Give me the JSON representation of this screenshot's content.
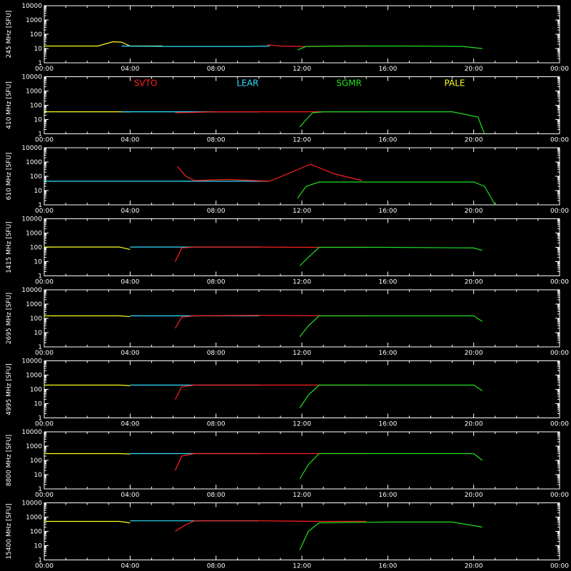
{
  "chart_data": {
    "type": "line",
    "ylabel_unit": "[SFU]",
    "y_scale": "log",
    "ylim": [
      1,
      10000
    ],
    "y_ticks": [
      "10000",
      "1000",
      "100",
      "10",
      "1"
    ],
    "x_ticks": [
      "00:00",
      "04:00",
      "08:00",
      "12:00",
      "16:00",
      "20:00",
      "00:00"
    ],
    "xlim_hours": [
      0,
      24
    ],
    "legend": [
      {
        "name": "SVTO",
        "color": "#ff2020"
      },
      {
        "name": "LEAR",
        "color": "#30e0ff"
      },
      {
        "name": "SGMR",
        "color": "#20e020"
      },
      {
        "name": "PALE",
        "color": "#ffff20"
      }
    ],
    "panels": [
      {
        "freq": "245 MHz",
        "series": {
          "PALE": [
            [
              0,
              15
            ],
            [
              2.5,
              15
            ],
            [
              3.2,
              30
            ],
            [
              3.6,
              28
            ],
            [
              4,
              15
            ],
            [
              5.5,
              15
            ]
          ],
          "LEAR": [
            [
              3.6,
              15
            ],
            [
              6,
              14
            ],
            [
              8,
              14
            ],
            [
              9.5,
              14
            ],
            [
              10.5,
              15
            ]
          ],
          "SVTO": [
            [
              10.4,
              18
            ],
            [
              11,
              15
            ],
            [
              12,
              14
            ],
            [
              13.5,
              15
            ],
            [
              15,
              15
            ]
          ],
          "SGMR": [
            [
              11.8,
              8
            ],
            [
              12.2,
              14
            ],
            [
              14,
              15
            ],
            [
              16,
              15
            ],
            [
              17,
              15
            ],
            [
              19.5,
              14
            ],
            [
              20.4,
              10
            ]
          ]
        }
      },
      {
        "freq": "410 MHz",
        "series": {
          "PALE": [
            [
              0,
              35
            ],
            [
              1,
              35
            ],
            [
              3.5,
              35
            ],
            [
              4,
              35
            ]
          ],
          "LEAR": [
            [
              3.6,
              35
            ],
            [
              6,
              35
            ],
            [
              8,
              35
            ],
            [
              10,
              35
            ]
          ],
          "SVTO": [
            [
              6.1,
              30
            ],
            [
              8,
              35
            ],
            [
              10,
              35
            ],
            [
              12,
              35
            ],
            [
              15,
              35
            ]
          ],
          "SGMR": [
            [
              11.9,
              3
            ],
            [
              12.2,
              10
            ],
            [
              12.5,
              30
            ],
            [
              13,
              35
            ],
            [
              16,
              35
            ],
            [
              19,
              35
            ],
            [
              20.2,
              15
            ],
            [
              20.5,
              1
            ]
          ]
        }
      },
      {
        "freq": "610 MHz",
        "series": {
          "LEAR": [
            [
              0,
              45
            ],
            [
              3.5,
              45
            ],
            [
              6,
              45
            ],
            [
              9,
              45
            ],
            [
              10.5,
              45
            ]
          ],
          "SVTO": [
            [
              6.2,
              500
            ],
            [
              6.6,
              100
            ],
            [
              7,
              50
            ],
            [
              8.5,
              60
            ],
            [
              10.5,
              45
            ],
            [
              12.4,
              700
            ],
            [
              13.5,
              150
            ],
            [
              14.8,
              50
            ]
          ],
          "SGMR": [
            [
              11.8,
              3
            ],
            [
              12.2,
              20
            ],
            [
              12.8,
              40
            ],
            [
              16,
              40
            ],
            [
              20,
              40
            ],
            [
              20.5,
              20
            ],
            [
              21,
              1
            ]
          ]
        }
      },
      {
        "freq": "1415 MHz",
        "series": {
          "PALE": [
            [
              0,
              105
            ],
            [
              3.5,
              105
            ],
            [
              4,
              70
            ]
          ],
          "LEAR": [
            [
              4,
              105
            ],
            [
              6,
              105
            ],
            [
              9,
              105
            ],
            [
              10,
              105
            ]
          ],
          "SVTO": [
            [
              6.1,
              10
            ],
            [
              6.4,
              90
            ],
            [
              7,
              105
            ],
            [
              10,
              105
            ],
            [
              12,
              100
            ],
            [
              15,
              100
            ]
          ],
          "SGMR": [
            [
              11.9,
              5
            ],
            [
              12.3,
              20
            ],
            [
              12.8,
              100
            ],
            [
              16,
              100
            ],
            [
              20,
              90
            ],
            [
              20.4,
              60
            ]
          ]
        }
      },
      {
        "freq": "2695 MHz",
        "series": {
          "PALE": [
            [
              0,
              150
            ],
            [
              3.5,
              150
            ],
            [
              4,
              130
            ]
          ],
          "LEAR": [
            [
              4,
              150
            ],
            [
              6,
              150
            ],
            [
              9,
              150
            ],
            [
              10,
              150
            ]
          ],
          "SVTO": [
            [
              6.1,
              20
            ],
            [
              6.4,
              120
            ],
            [
              7,
              150
            ],
            [
              10,
              160
            ],
            [
              13,
              150
            ],
            [
              15,
              150
            ]
          ],
          "SGMR": [
            [
              11.9,
              5
            ],
            [
              12.3,
              30
            ],
            [
              12.8,
              150
            ],
            [
              16,
              150
            ],
            [
              20,
              150
            ],
            [
              20.4,
              60
            ]
          ]
        }
      },
      {
        "freq": "4995 MHz",
        "series": {
          "PALE": [
            [
              0,
              200
            ],
            [
              3.5,
              200
            ],
            [
              4,
              180
            ]
          ],
          "LEAR": [
            [
              4,
              200
            ],
            [
              6,
              200
            ],
            [
              9,
              200
            ],
            [
              10,
              200
            ]
          ],
          "SVTO": [
            [
              6.1,
              20
            ],
            [
              6.4,
              150
            ],
            [
              7,
              200
            ],
            [
              10,
              200
            ],
            [
              13,
              200
            ],
            [
              15,
              200
            ]
          ],
          "SGMR": [
            [
              11.9,
              5
            ],
            [
              12.3,
              40
            ],
            [
              12.8,
              200
            ],
            [
              16,
              200
            ],
            [
              20,
              200
            ],
            [
              20.4,
              80
            ]
          ]
        }
      },
      {
        "freq": "8800 MHz",
        "series": {
          "PALE": [
            [
              0,
              300
            ],
            [
              3.5,
              300
            ],
            [
              4,
              280
            ]
          ],
          "LEAR": [
            [
              4,
              300
            ],
            [
              6,
              300
            ],
            [
              9,
              300
            ],
            [
              10,
              300
            ]
          ],
          "SVTO": [
            [
              6.1,
              20
            ],
            [
              6.4,
              200
            ],
            [
              7,
              300
            ],
            [
              10,
              300
            ],
            [
              13,
              300
            ],
            [
              15,
              300
            ]
          ],
          "SGMR": [
            [
              11.9,
              5
            ],
            [
              12.3,
              50
            ],
            [
              12.8,
              300
            ],
            [
              16,
              300
            ],
            [
              20,
              300
            ],
            [
              20.4,
              100
            ]
          ]
        }
      },
      {
        "freq": "15400 MHz",
        "series": {
          "PALE": [
            [
              0,
              500
            ],
            [
              3.5,
              500
            ],
            [
              4,
              400
            ]
          ],
          "LEAR": [
            [
              4,
              550
            ],
            [
              6,
              550
            ],
            [
              9,
              550
            ],
            [
              10,
              550
            ]
          ],
          "SVTO": [
            [
              6.1,
              100
            ],
            [
              6.6,
              300
            ],
            [
              7,
              550
            ],
            [
              10,
              550
            ],
            [
              13,
              500
            ],
            [
              15,
              500
            ]
          ],
          "SGMR": [
            [
              11.9,
              5
            ],
            [
              12.3,
              100
            ],
            [
              12.8,
              400
            ],
            [
              16,
              450
            ],
            [
              19,
              450
            ],
            [
              20.4,
              200
            ]
          ]
        }
      }
    ]
  }
}
